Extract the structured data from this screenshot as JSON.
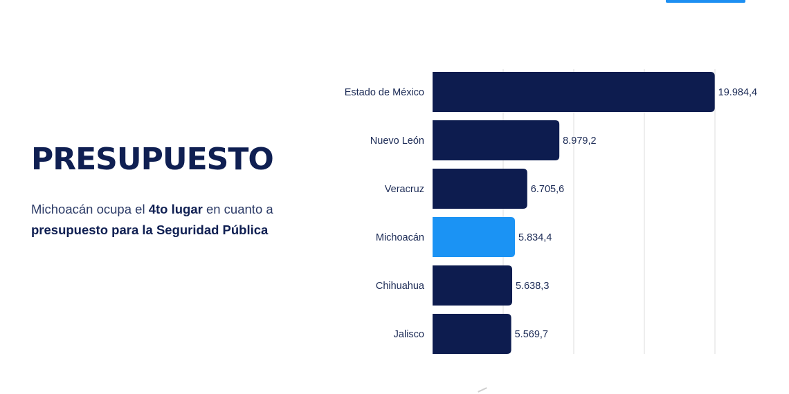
{
  "header": {
    "title": "PRESUPUESTO",
    "desc_part1": "Michoacán ocupa el ",
    "desc_bold1": "4to lugar",
    "desc_part2": " en cuanto a",
    "desc_bold2": "presupuesto para la Seguridad Pública"
  },
  "colors": {
    "bar_default": "#0d1c4f",
    "bar_highlight": "#1b93f4",
    "gridline": "#dcdcdc",
    "accent": "#1d8ff2"
  },
  "chart_data": {
    "type": "bar",
    "orientation": "horizontal",
    "categories": [
      "Estado de México",
      "Nuevo León",
      "Veracruz",
      "Michoacán",
      "Chihuahua",
      "Jalisco"
    ],
    "values": [
      19984.4,
      8979.2,
      6705.6,
      5834.4,
      5638.3,
      5569.7
    ],
    "value_labels": [
      "19.984,4",
      "8.979,2",
      "6.705,6",
      "5.834,4",
      "5.638,3",
      "5.569,7"
    ],
    "highlight": "Michoacán",
    "xlim": [
      0,
      20000
    ],
    "gridlines_at": [
      5000,
      10000,
      15000,
      20000
    ],
    "grid": true,
    "legend": "none"
  }
}
